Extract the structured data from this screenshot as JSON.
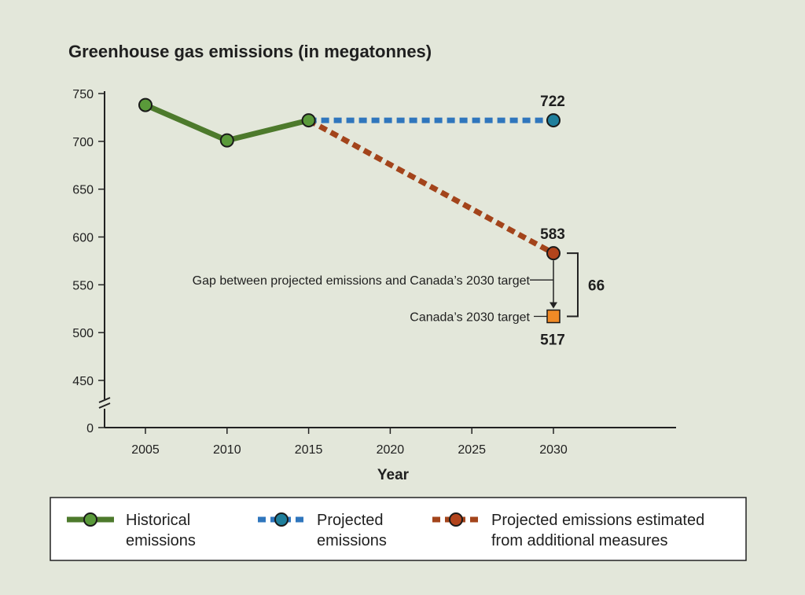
{
  "chart_data": {
    "type": "line",
    "title": "Greenhouse gas emissions (in megatonnes)",
    "xlabel": "Year",
    "ylabel": "",
    "x_ticks": [
      2005,
      2010,
      2015,
      2020,
      2025,
      2030
    ],
    "y_ticks": [
      0,
      450,
      500,
      550,
      600,
      650,
      700,
      750
    ],
    "y_axis_break": "between 0 and 450",
    "ylim": [
      450,
      750
    ],
    "series": [
      {
        "name": "Historical emissions",
        "color": "#4d7a2c",
        "marker_color": "#5a9a3a",
        "style": "solid",
        "points": [
          {
            "x": 2005,
            "y": 738
          },
          {
            "x": 2010,
            "y": 701
          },
          {
            "x": 2015,
            "y": 722
          }
        ]
      },
      {
        "name": "Projected emissions",
        "color": "#2f76bd",
        "marker_color": "#1f7f9c",
        "style": "dashed",
        "points": [
          {
            "x": 2015,
            "y": 722
          },
          {
            "x": 2030,
            "y": 722
          }
        ]
      },
      {
        "name": "Projected emissions estimated from additional measures",
        "color": "#a3441b",
        "marker_color": "#b3441c",
        "style": "dashed",
        "points": [
          {
            "x": 2015,
            "y": 722
          },
          {
            "x": 2030,
            "y": 583
          }
        ]
      }
    ],
    "target": {
      "label": "Canada’s 2030 target",
      "x": 2030,
      "y": 517,
      "color": "#f08a26"
    },
    "value_labels": [
      {
        "text": "722",
        "x": 2030,
        "y": 722
      },
      {
        "text": "583",
        "x": 2030,
        "y": 583
      },
      {
        "text": "517",
        "x": 2030,
        "y": 517
      }
    ],
    "gap": {
      "label": "Gap between projected emissions and Canada’s 2030 target",
      "value": "66",
      "from": 583,
      "to": 517
    },
    "grid": false,
    "legend_position": "bottom"
  },
  "legend": [
    {
      "line1": "Historical",
      "line2": "emissions",
      "color": "#4d7a2c",
      "marker_color": "#5a9a3a",
      "style": "solid"
    },
    {
      "line1": "Projected",
      "line2": "emissions",
      "color": "#2f76bd",
      "marker_color": "#1f7f9c",
      "style": "dashed"
    },
    {
      "line1": "Projected emissions estimated",
      "line2": "from additional measures",
      "color": "#a3441b",
      "marker_color": "#b3441c",
      "style": "dashed"
    }
  ]
}
